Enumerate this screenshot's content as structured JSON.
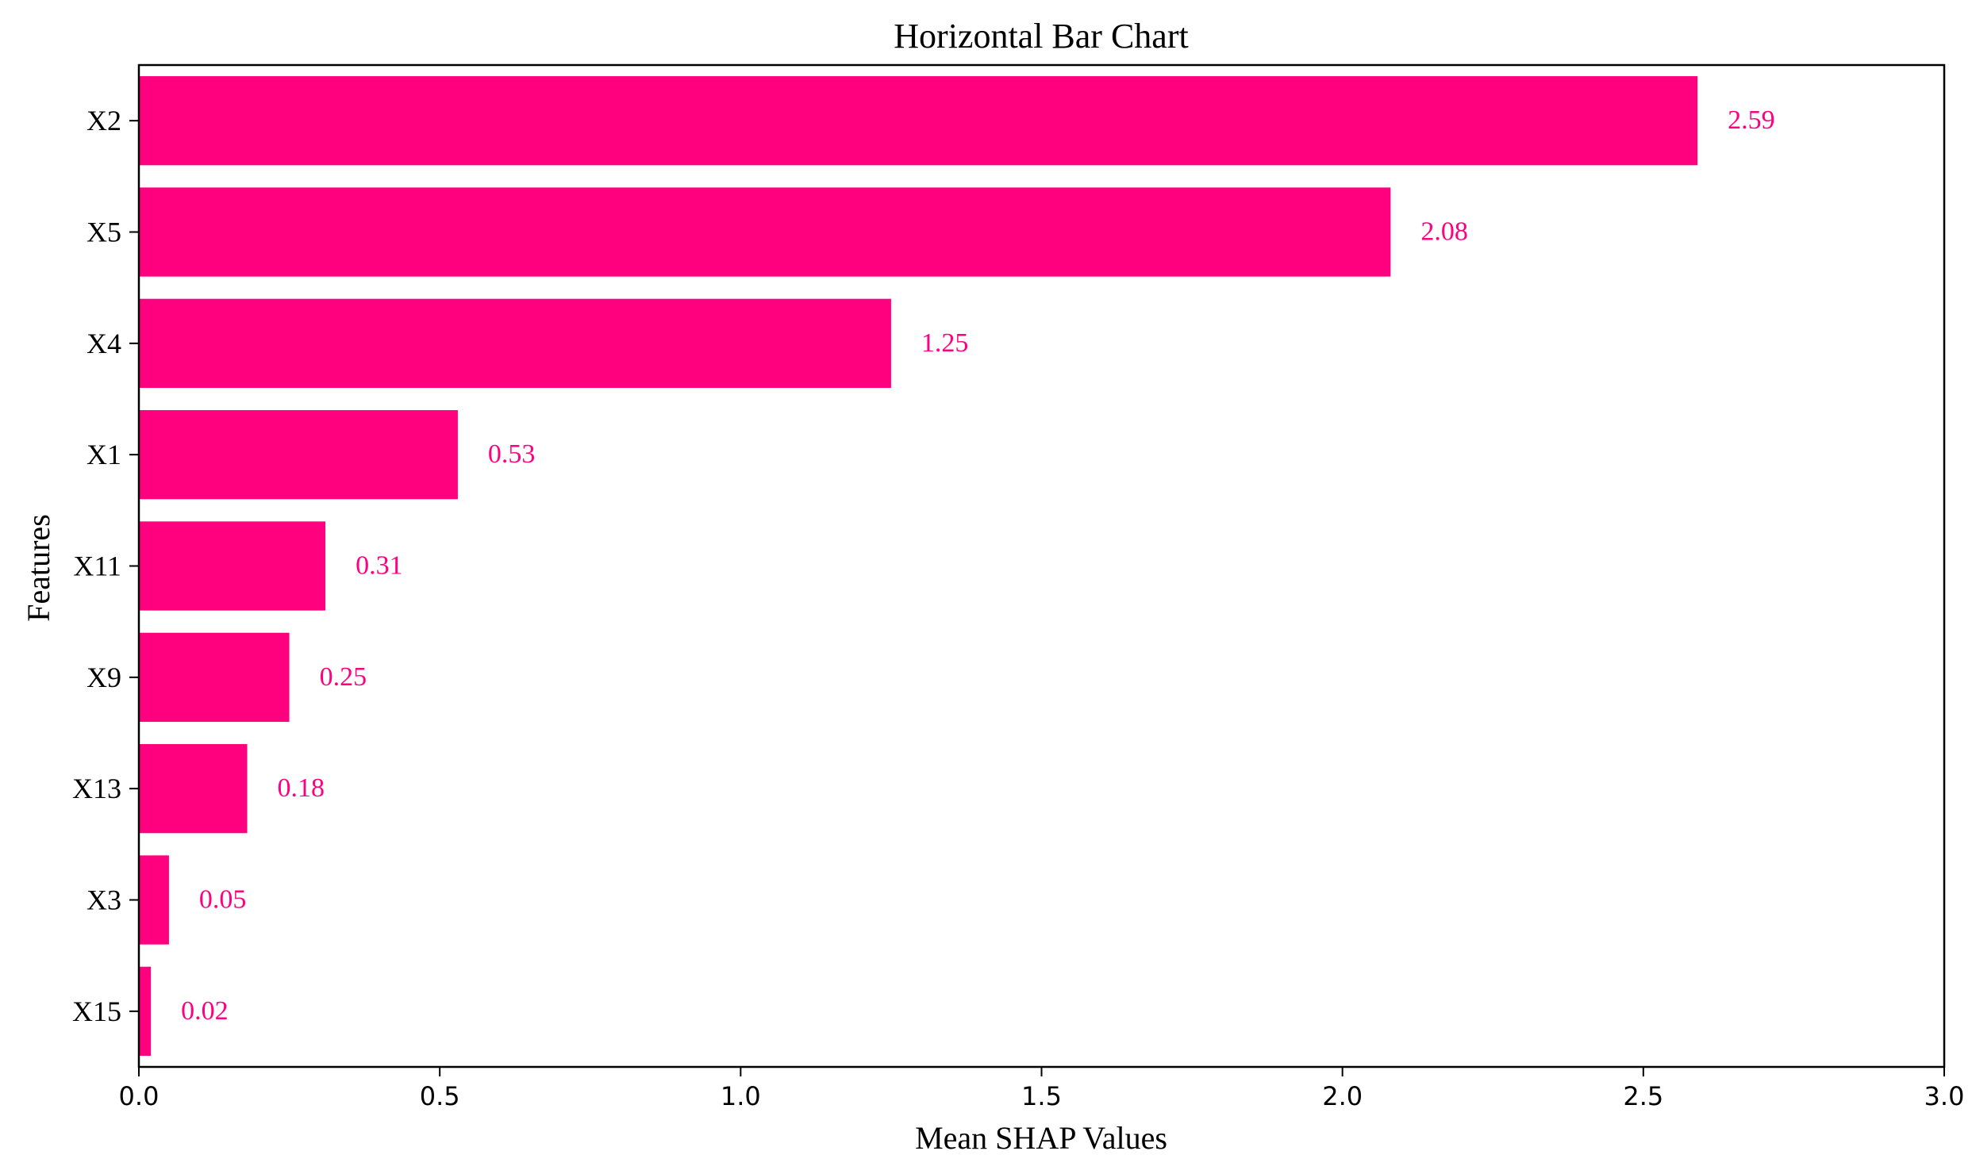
{
  "chart_data": {
    "type": "bar",
    "orientation": "horizontal",
    "title": "Horizontal Bar Chart",
    "xlabel": "Mean SHAP Values",
    "ylabel": "Features",
    "categories": [
      "X2",
      "X5",
      "X4",
      "X1",
      "X11",
      "X9",
      "X13",
      "X3",
      "X15"
    ],
    "values": [
      2.59,
      2.08,
      1.25,
      0.53,
      0.31,
      0.25,
      0.18,
      0.05,
      0.02
    ],
    "data_labels": [
      "2.59",
      "2.08",
      "1.25",
      "0.53",
      "0.31",
      "0.25",
      "0.18",
      "0.05",
      "0.02"
    ],
    "xlim": [
      0,
      3.0
    ],
    "x_ticks": [
      0.0,
      0.5,
      1.0,
      1.5,
      2.0,
      2.5,
      3.0
    ],
    "x_tick_labels": [
      "0.0",
      "0.5",
      "1.0",
      "1.5",
      "2.0",
      "2.5",
      "3.0"
    ],
    "grid": false,
    "legend": "none",
    "colors": {
      "bar": "#FF007F",
      "data_label": "#FF007F",
      "axis": "#000000",
      "text": "#000000"
    }
  }
}
